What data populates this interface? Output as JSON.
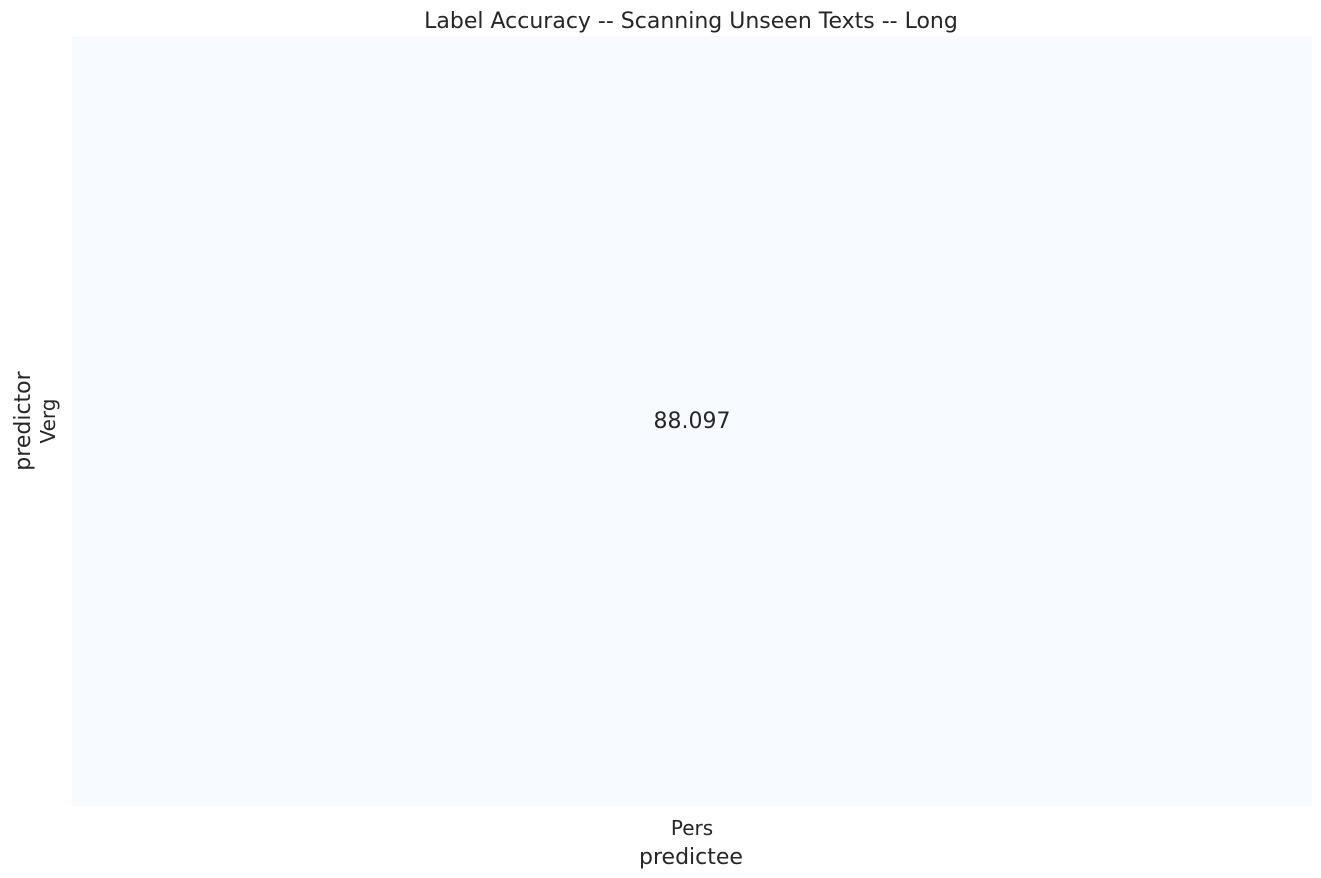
{
  "chart_data": {
    "type": "heatmap",
    "title": "Label Accuracy -- Scanning Unseen Texts -- Long",
    "xlabel": "predictee",
    "ylabel": "predictor",
    "x_categories": [
      "Pers"
    ],
    "y_categories": [
      "Verg"
    ],
    "values": [
      [
        88.097
      ]
    ],
    "value_labels": [
      [
        "88.097"
      ]
    ],
    "colormap": "Blues",
    "cell_color": "#f7fbff",
    "grid": false,
    "colorbar": false
  }
}
